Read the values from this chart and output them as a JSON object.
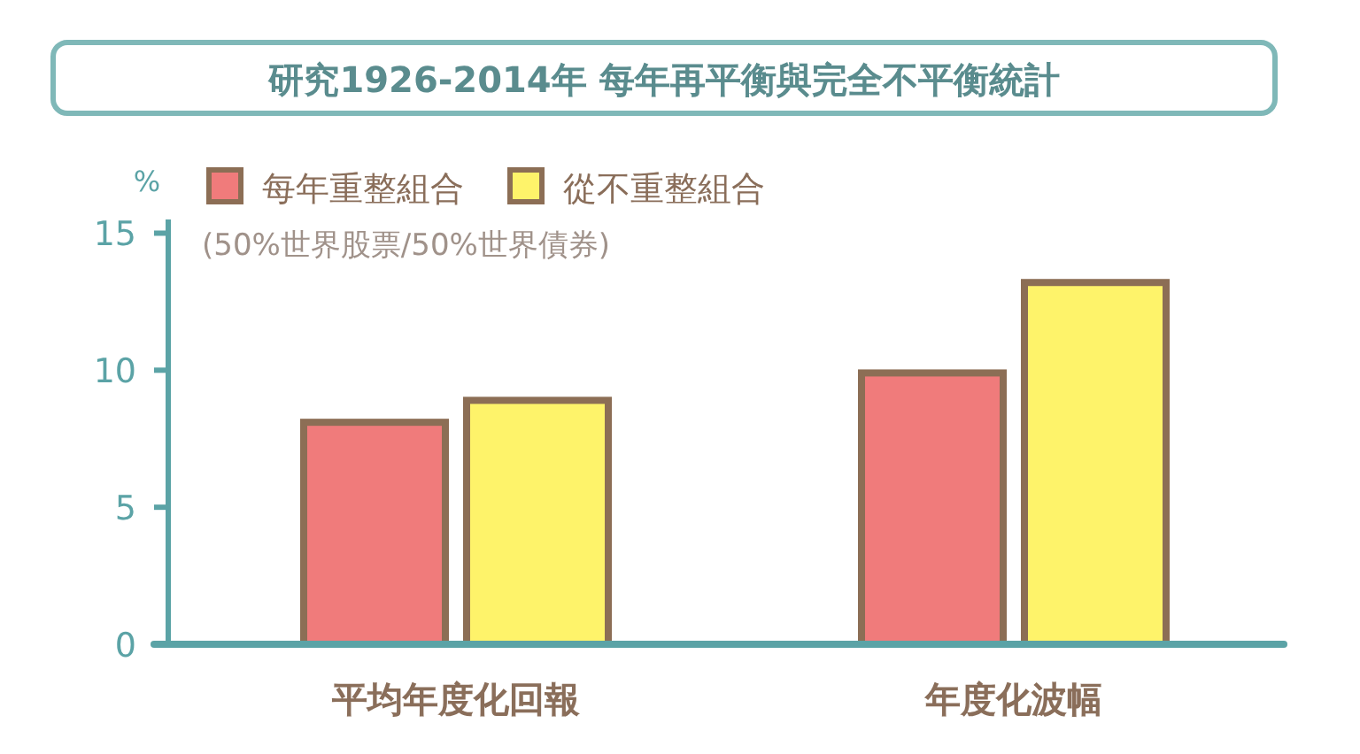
{
  "chart_data": {
    "type": "bar",
    "title": "研究1926-2014年 每年再平衡與完全不平衡統計",
    "subtitle": "(50%世界股票/50%世界債券)",
    "ylabel": "%",
    "categories": [
      "平均年度化回報",
      "年度化波幅"
    ],
    "series": [
      {
        "name": "每年重整組合",
        "color": "#f07b7b",
        "values": [
          8.1,
          9.9
        ]
      },
      {
        "name": "從不重整組合",
        "color": "#fef36a",
        "values": [
          8.9,
          13.2
        ]
      }
    ],
    "ylim": [
      0,
      15.5
    ],
    "yticks": [
      0,
      5,
      10,
      15
    ],
    "grid": false,
    "legend": "top left"
  }
}
